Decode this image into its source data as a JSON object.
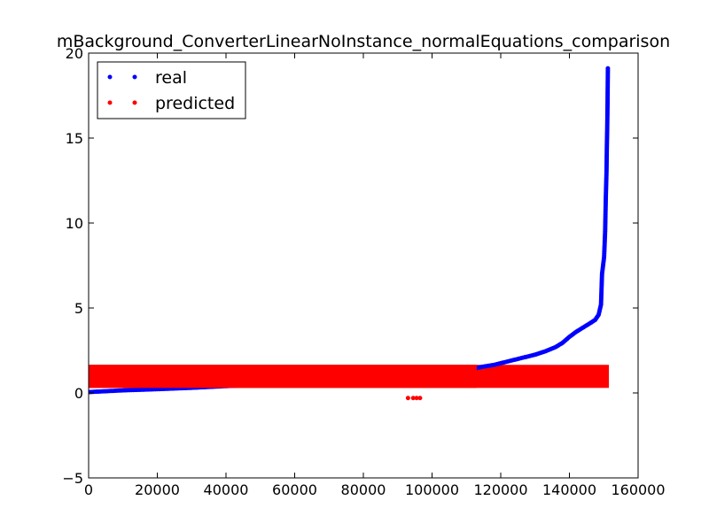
{
  "chart_data": {
    "type": "scatter",
    "title": "mBackground_ConverterLinearNoInstance_normalEquations_comparison",
    "xlabel": "",
    "ylabel": "",
    "xlim": [
      0,
      160000
    ],
    "ylim": [
      -5,
      20
    ],
    "xticks": [
      "0",
      "20000",
      "40000",
      "60000",
      "80000",
      "100000",
      "120000",
      "140000",
      "160000"
    ],
    "yticks": [
      "−5",
      "0",
      "5",
      "10",
      "15",
      "20"
    ],
    "grid": false,
    "legend_position": "top-left",
    "series": [
      {
        "name": "real",
        "color": "#0000ff",
        "x": [
          0,
          5000,
          10000,
          20000,
          30000,
          40000,
          50000,
          60000,
          70000,
          80000,
          90000,
          100000,
          105000,
          110000,
          115000,
          118000,
          121000,
          124000,
          127000,
          130000,
          133000,
          136000,
          138000,
          140000,
          142000,
          144000,
          146000,
          147500,
          148500,
          149200,
          149500,
          149800,
          150100,
          150400,
          150600,
          150800,
          150900,
          151000,
          151100,
          151200
        ],
        "y": [
          0.05,
          0.1,
          0.15,
          0.22,
          0.3,
          0.4,
          0.5,
          0.6,
          0.7,
          0.82,
          0.95,
          1.1,
          1.2,
          1.35,
          1.55,
          1.65,
          1.8,
          1.95,
          2.1,
          2.25,
          2.45,
          2.7,
          2.95,
          3.3,
          3.6,
          3.85,
          4.1,
          4.3,
          4.6,
          5.2,
          7.0,
          7.5,
          8.0,
          9.5,
          11.5,
          13.0,
          14.5,
          15.5,
          17.0,
          19.1
        ]
      },
      {
        "name": "predicted",
        "color": "#ff0000",
        "x": [
          0,
          151500
        ],
        "y_band": [
          0.4,
          1.55
        ],
        "outliers": [
          {
            "x": 93000,
            "y": -0.3
          },
          {
            "x": 94500,
            "y": -0.3
          },
          {
            "x": 95500,
            "y": -0.3
          },
          {
            "x": 96500,
            "y": -0.3
          }
        ]
      }
    ]
  }
}
